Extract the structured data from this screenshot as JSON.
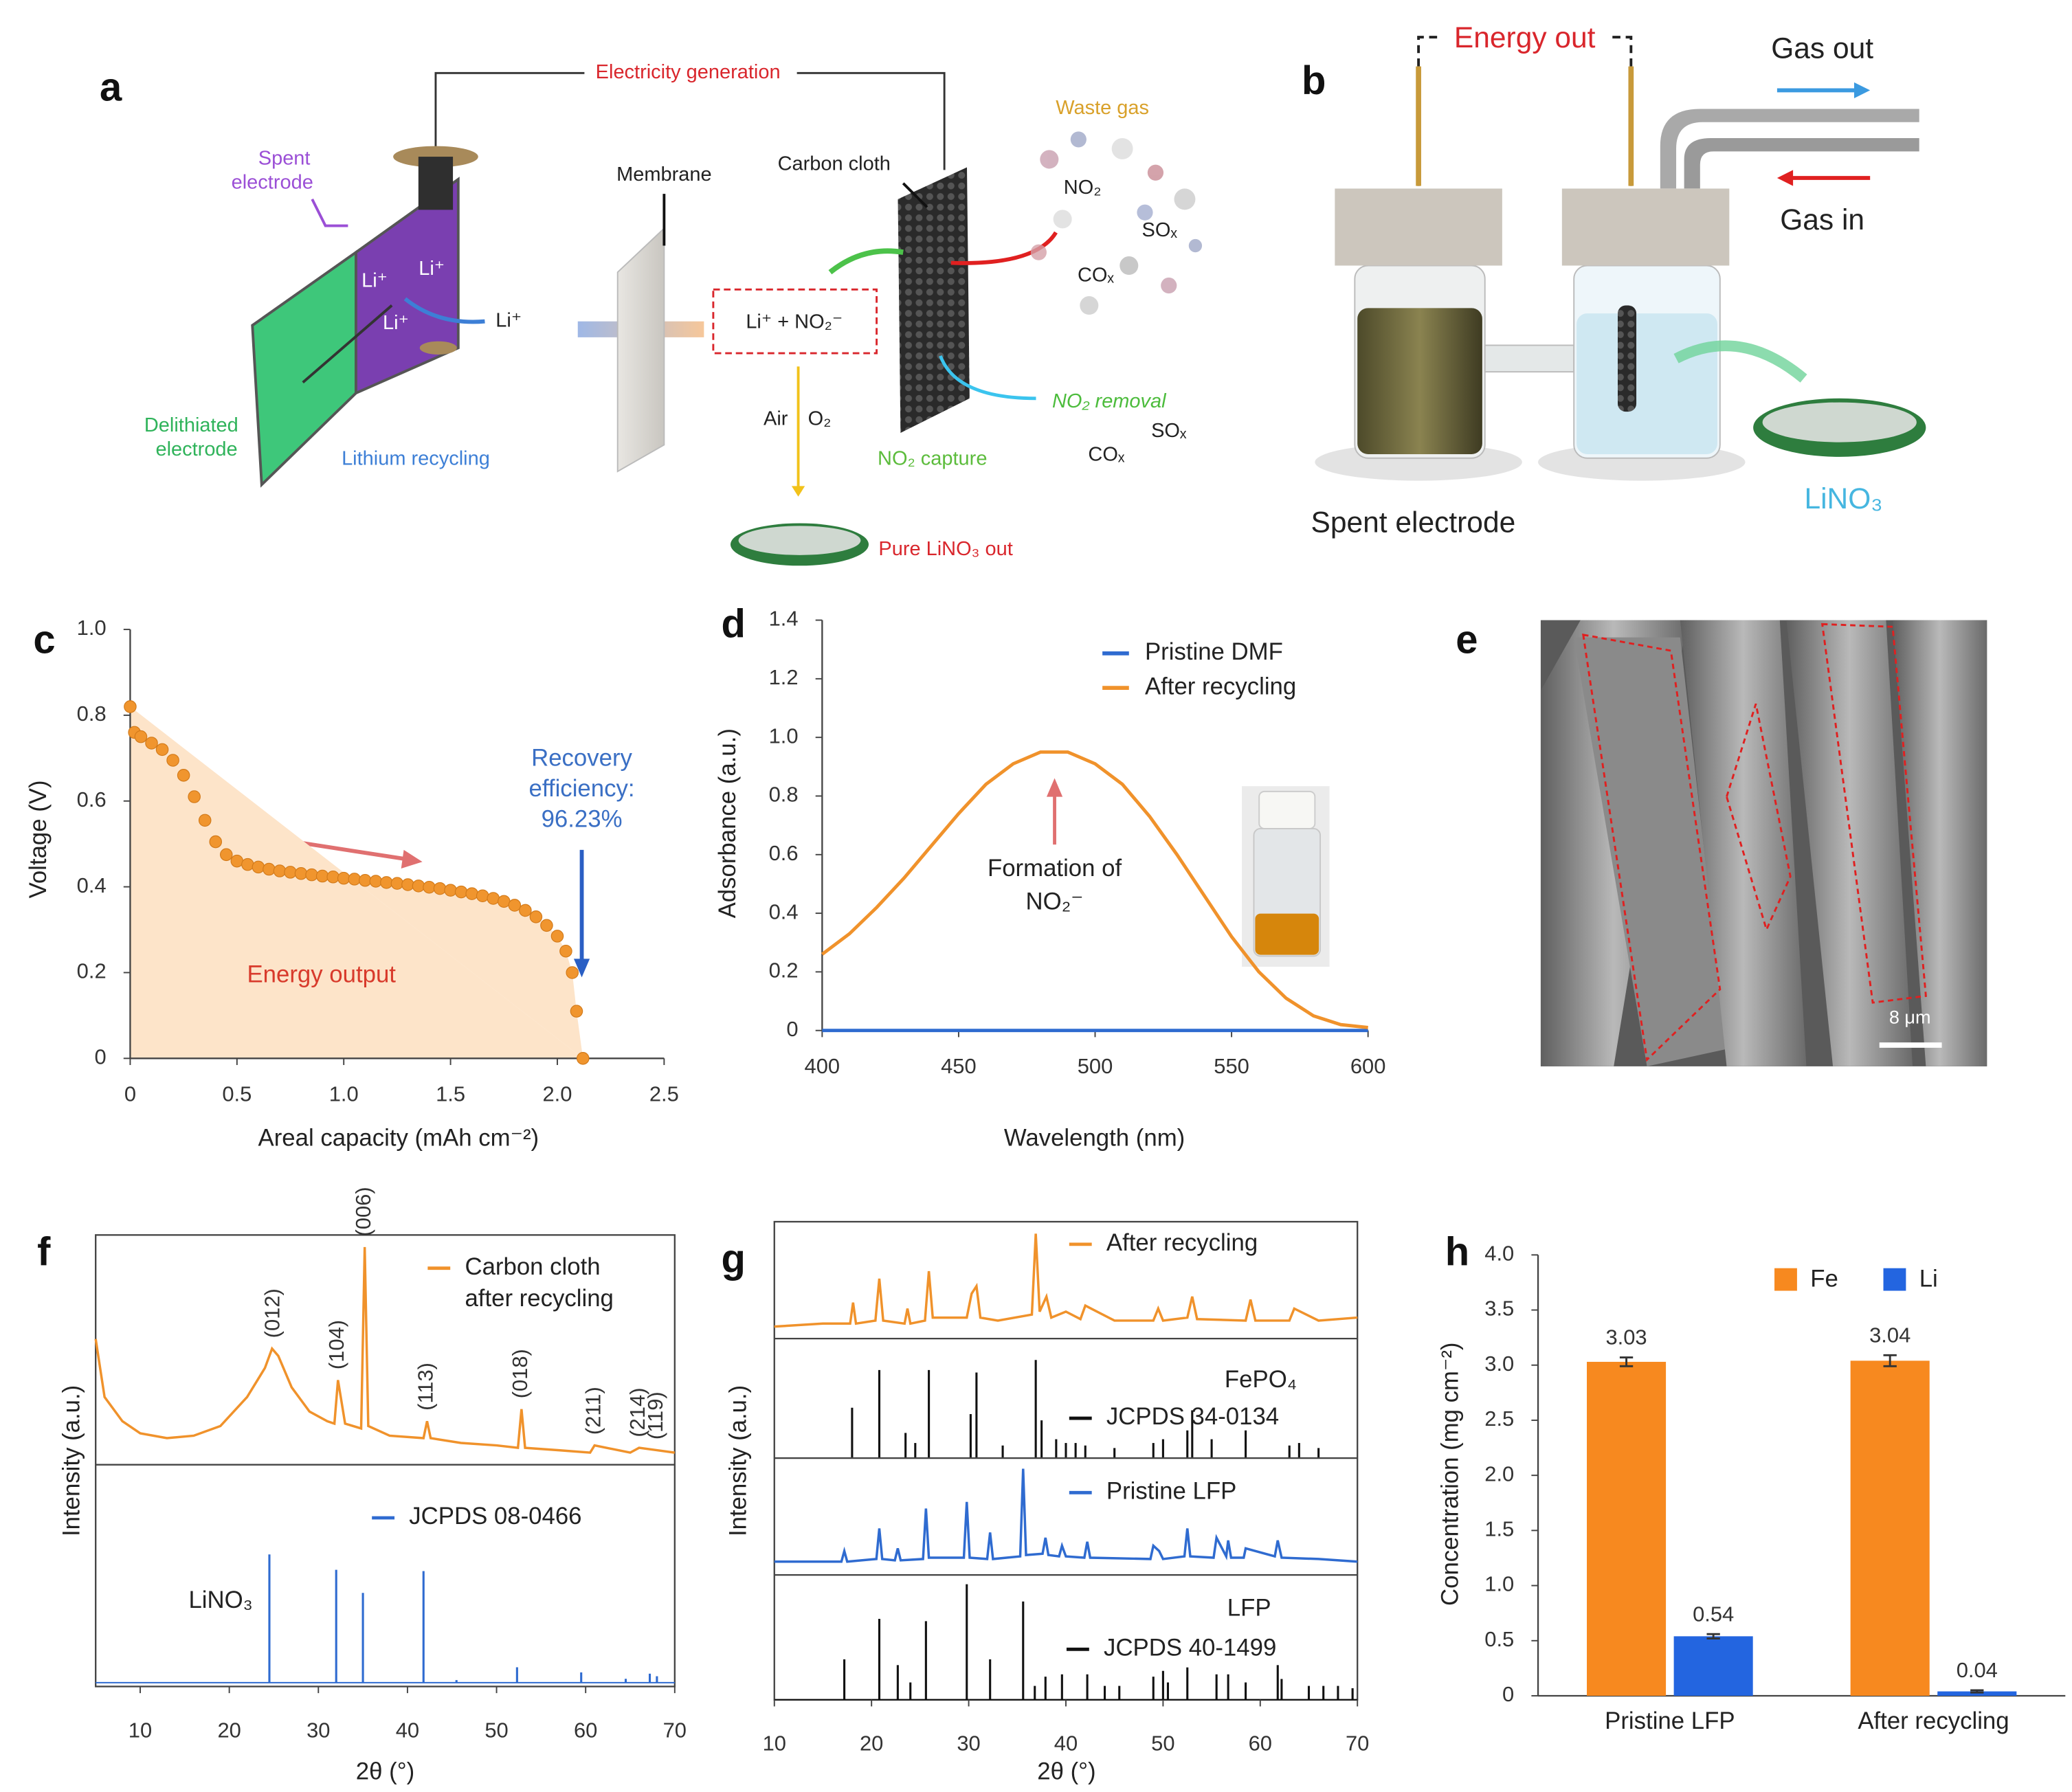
{
  "panel_labels": [
    "a",
    "b",
    "c",
    "d",
    "e",
    "f",
    "g",
    "h"
  ],
  "diagram_a": {
    "electricity": "Electricity generation",
    "spent": [
      "Spent",
      "electrode"
    ],
    "li": [
      "Li⁺",
      "Li⁺",
      "Li⁺",
      "Li⁺"
    ],
    "delithiated": [
      "Delithiated",
      "electrode"
    ],
    "lithium_recycling": "Lithium recycling",
    "membrane": "Membrane",
    "carbon_cloth": "Carbon cloth",
    "waste_gas": "Waste gas",
    "gases": [
      "NO₂",
      "SOₓ",
      "COₓ"
    ],
    "reaction": "Li⁺ + NO₂⁻",
    "air": "Air",
    "o2": "O₂",
    "capture": "NO₂ capture",
    "removal": "NO₂ removal",
    "remaining": [
      "SOₓ",
      "COₓ"
    ],
    "product": "Pure LiNO₃ out"
  },
  "diagram_b": {
    "energy_out": "Energy out",
    "gas_out": "Gas out",
    "gas_in": "Gas in",
    "spent": "Spent electrode",
    "product": "LiNO₃"
  },
  "image_e": {
    "scale_bar": "8 μm"
  },
  "chart_data": [
    {
      "type": "scatter",
      "xlabel": "Areal capacity (mAh cm⁻²)",
      "ylabel": "Voltage (V)",
      "xlim": [
        0,
        2.5
      ],
      "ylim": [
        0,
        1
      ],
      "xticks": [
        0,
        0.5,
        {
          "value": 1,
          "label": "1.0"
        },
        1.5,
        {
          "value": 2,
          "label": "2.0"
        },
        2.5
      ],
      "yticks": [
        0,
        0.2,
        0.4,
        0.6,
        0.8,
        {
          "value": 1,
          "label": "1.0"
        }
      ],
      "color": "#f0952e",
      "area_color": "#fde4c9",
      "x": [
        0,
        0.02,
        0.05,
        0.1,
        0.15,
        0.2,
        0.25,
        0.3,
        0.35,
        0.4,
        0.45,
        0.5,
        0.55,
        0.6,
        0.65,
        0.7,
        0.75,
        0.8,
        0.85,
        0.9,
        0.95,
        1.0,
        1.05,
        1.1,
        1.15,
        1.2,
        1.25,
        1.3,
        1.35,
        1.4,
        1.45,
        1.5,
        1.55,
        1.6,
        1.65,
        1.7,
        1.75,
        1.8,
        1.85,
        1.9,
        1.95,
        2.0,
        2.04,
        2.07,
        2.09,
        2.12
      ],
      "values": [
        0.82,
        0.76,
        0.75,
        0.735,
        0.72,
        0.695,
        0.66,
        0.61,
        0.555,
        0.505,
        0.475,
        0.46,
        0.452,
        0.446,
        0.441,
        0.437,
        0.434,
        0.431,
        0.428,
        0.425,
        0.423,
        0.42,
        0.418,
        0.415,
        0.413,
        0.41,
        0.408,
        0.405,
        0.402,
        0.399,
        0.396,
        0.392,
        0.388,
        0.384,
        0.379,
        0.373,
        0.366,
        0.357,
        0.345,
        0.33,
        0.31,
        0.285,
        0.25,
        0.2,
        0.11,
        0
      ],
      "annotations": [
        {
          "text": [
            "Recovery",
            "efficiency:",
            "96.23%"
          ],
          "color": "#3a6fc4"
        },
        {
          "text": "Energy output",
          "color": "#d83a2b"
        }
      ]
    },
    {
      "type": "line",
      "xlabel": "Wavelength (nm)",
      "ylabel": "Adsorbance (a.u.)",
      "xlim": [
        400,
        600
      ],
      "ylim": [
        0,
        1.4
      ],
      "xticks": [
        400,
        450,
        500,
        550,
        600
      ],
      "yticks": [
        0,
        0.2,
        0.4,
        0.6,
        0.8,
        {
          "value": 1,
          "label": "1.0"
        },
        1.2,
        1.4
      ],
      "x": [
        400,
        410,
        420,
        430,
        440,
        450,
        460,
        470,
        480,
        490,
        500,
        510,
        520,
        530,
        540,
        550,
        560,
        570,
        580,
        590,
        600
      ],
      "series": [
        {
          "name": "Pristine DMF",
          "color": "#2f6bd0",
          "values": [
            0,
            0,
            0,
            0,
            0,
            0,
            0,
            0,
            0,
            0,
            0,
            0,
            0,
            0,
            0,
            0,
            0,
            0,
            0,
            0,
            0
          ]
        },
        {
          "name": "After recycling",
          "color": "#f0922b",
          "values": [
            0.26,
            0.33,
            0.42,
            0.52,
            0.63,
            0.74,
            0.84,
            0.91,
            0.95,
            0.95,
            0.91,
            0.84,
            0.73,
            0.6,
            0.46,
            0.32,
            0.2,
            0.11,
            0.05,
            0.02,
            0.01
          ]
        }
      ],
      "annotations": [
        {
          "text": [
            "Formation of",
            "NO₂⁻"
          ],
          "color": "#222"
        }
      ]
    },
    {
      "type": "xrd",
      "xlabel": "2θ (°)",
      "ylabel": "Intensity (a.u.)",
      "xlim": [
        5,
        70
      ],
      "xticks": [
        10,
        20,
        30,
        40,
        50,
        60,
        70
      ],
      "panels": [
        {
          "ylim": [
            10,
            105
          ],
          "series": [
            {
              "name": [
                "Carbon cloth",
                "after recycling"
              ],
              "type": "line",
              "color": "#f0922b",
              "x": [
                5,
                6,
                8,
                10,
                13,
                16,
                19,
                22,
                24,
                24.8,
                25.5,
                27,
                29,
                31,
                31.8,
                32.2,
                33,
                34.8,
                35.2,
                35.6,
                38,
                41.8,
                42.2,
                42.6,
                46,
                50,
                52.4,
                52.8,
                53.2,
                57,
                60.5,
                61,
                65,
                66,
                68,
                70
              ],
              "values": [
                62,
                38,
                28,
                23,
                21,
                22,
                26,
                38,
                50,
                58,
                55,
                42,
                32,
                28,
                27,
                45,
                27,
                25,
                100,
                26,
                22,
                21,
                28,
                21,
                19,
                18,
                17,
                33,
                17,
                16,
                15,
                18,
                15,
                17,
                16,
                15
              ]
            }
          ],
          "annotations": [
            {
              "text": "(012)",
              "x": 25
            },
            {
              "text": "(104)",
              "x": 32.2
            },
            {
              "text": "(006)",
              "x": 35.2
            },
            {
              "text": "(113)",
              "x": 42.2
            },
            {
              "text": "(018)",
              "x": 52.8
            },
            {
              "text": "(211)",
              "x": 61
            },
            {
              "text": "(214)",
              "x": 66
            },
            {
              "text": "(119)",
              "x": 68
            }
          ]
        },
        {
          "ylim": [
            -3,
            170
          ],
          "label": "LiNO₃",
          "series": [
            {
              "name": "JCPDS 08-0466",
              "type": "stem",
              "color": "#2f6bd0",
              "x": [
                24.5,
                32,
                35,
                41.8,
                45.5,
                52.3,
                59.5,
                64.5,
                67.2,
                68
              ],
              "values": [
                100,
                88,
                70,
                87,
                2,
                12,
                8,
                3,
                7,
                5
              ]
            }
          ]
        }
      ]
    },
    {
      "type": "xrd",
      "xlabel": "2θ (°)",
      "ylabel": "Intensity (a.u.)",
      "xlim": [
        10,
        70
      ],
      "xticks": [
        10,
        20,
        30,
        40,
        50,
        60,
        70
      ],
      "panels": [
        {
          "ylim": [
            0,
            78
          ],
          "series": [
            {
              "name": "After recycling",
              "type": "line",
              "color": "#f0922b",
              "x": [
                10,
                15,
                17.8,
                18.1,
                18.4,
                20.4,
                20.8,
                21.2,
                23.4,
                23.7,
                24,
                25.5,
                25.9,
                26.3,
                29.8,
                30.3,
                30.8,
                31.2,
                33,
                36.5,
                36.9,
                37.3,
                38,
                38.5,
                40,
                41.5,
                42,
                45,
                49,
                49.5,
                50,
                52.5,
                53,
                53.5,
                58.5,
                59,
                59.5,
                63,
                63.5,
                66,
                70
              ],
              "values": [
                8,
                10,
                10,
                24,
                10,
                12,
                40,
                12,
                10,
                20,
                10,
                12,
                45,
                14,
                14,
                30,
                35,
                14,
                12,
                16,
                70,
                18,
                28,
                14,
                18,
                13,
                22,
                12,
                12,
                20,
                12,
                14,
                28,
                13,
                12,
                26,
                12,
                12,
                20,
                12,
                14
              ]
            }
          ]
        },
        {
          "ylim": [
            0,
            95
          ],
          "label": "FePO₄",
          "series": [
            {
              "name": "JCPDS 34-0134",
              "type": "stem",
              "color": "#111111",
              "x": [
                18,
                20.8,
                23.5,
                24.5,
                25.9,
                30.2,
                30.8,
                33.5,
                36.9,
                37.5,
                39,
                40,
                41,
                42,
                45,
                49,
                50,
                52.5,
                53,
                55,
                58.5,
                63,
                64,
                66
              ],
              "values": [
                40,
                70,
                20,
                12,
                70,
                35,
                68,
                10,
                78,
                30,
                15,
                12,
                12,
                10,
                8,
                12,
                15,
                22,
                38,
                15,
                22,
                10,
                12,
                8
              ]
            }
          ]
        },
        {
          "ylim": [
            0,
            88
          ],
          "series": [
            {
              "name": "Pristine LFP",
              "type": "line",
              "color": "#2f6bd0",
              "x": [
                10,
                16.9,
                17.2,
                17.5,
                20.5,
                20.8,
                21.1,
                22.4,
                22.7,
                23,
                25.3,
                25.6,
                25.9,
                29.5,
                29.8,
                30.1,
                31.9,
                32.2,
                32.5,
                35.3,
                35.6,
                35.9,
                37.6,
                37.9,
                38.2,
                39.3,
                39.6,
                40,
                41.9,
                42.2,
                42.5,
                48.7,
                49,
                49.6,
                50,
                52.2,
                52.5,
                52.8,
                55.2,
                55.5,
                56.5,
                56.7,
                57,
                58.3,
                58.5,
                61.5,
                61.8,
                62.2,
                66,
                70
              ],
              "values": [
                10,
                10,
                18,
                10,
                12,
                35,
                12,
                11,
                20,
                11,
                12,
                50,
                13,
                13,
                55,
                13,
                12,
                32,
                12,
                14,
                80,
                15,
                16,
                28,
                15,
                14,
                22,
                14,
                13,
                25,
                13,
                12,
                22,
                18,
                12,
                14,
                35,
                14,
                13,
                28,
                14,
                26,
                13,
                13,
                20,
                14,
                26,
                13,
                12,
                10
              ]
            }
          ]
        },
        {
          "ylim": [
            0,
            108
          ],
          "label": "LFP",
          "series": [
            {
              "name": "JCPDS 40-1499",
              "type": "stem",
              "color": "#111111",
              "x": [
                17.2,
                20.8,
                22.7,
                24,
                25.6,
                29.8,
                32.2,
                35.6,
                36.8,
                37.9,
                39.6,
                42.2,
                44,
                45.5,
                49,
                50,
                50.5,
                52.5,
                55.5,
                56.7,
                58.5,
                61.8,
                62.2,
                65,
                66.5,
                68,
                69.5
              ],
              "values": [
                35,
                70,
                30,
                15,
                68,
                100,
                35,
                85,
                12,
                20,
                22,
                22,
                12,
                12,
                20,
                25,
                15,
                28,
                22,
                22,
                15,
                30,
                18,
                12,
                12,
                12,
                10
              ]
            }
          ]
        }
      ]
    },
    {
      "type": "bar",
      "ylabel": "Concentration (mg cm⁻²)",
      "categories": [
        "Pristine LFP",
        "After recycling"
      ],
      "ylim": [
        0,
        4
      ],
      "yticks": [
        0,
        0.5,
        {
          "value": 1,
          "label": "1.0"
        },
        1.5,
        {
          "value": 2,
          "label": "2.0"
        },
        2.5,
        {
          "value": 3,
          "label": "3.0"
        },
        3.5,
        {
          "value": 4,
          "label": "4.0"
        }
      ],
      "series": [
        {
          "name": "Fe",
          "color": "#f7891f",
          "values": [
            3.03,
            3.04
          ],
          "errors": [
            0.04,
            0.05
          ]
        },
        {
          "name": "Li",
          "color": "#2365e0",
          "values": [
            0.54,
            0.04
          ],
          "errors": [
            0.02,
            0.01
          ]
        }
      ]
    }
  ]
}
